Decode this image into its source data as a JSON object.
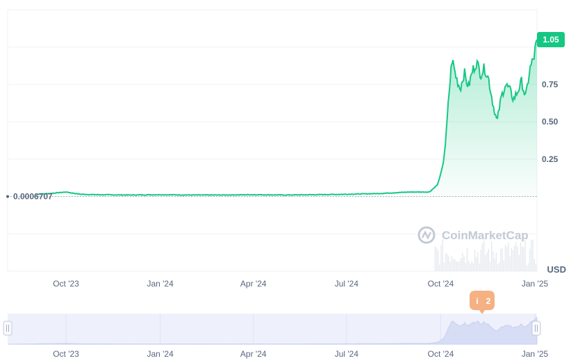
{
  "chart_data": {
    "type": "area",
    "title": "",
    "x": [
      "2023-09-01",
      "2023-09-15",
      "2023-10-01",
      "2023-10-15",
      "2023-11-01",
      "2023-12-01",
      "2024-01-01",
      "2024-02-01",
      "2024-03-01",
      "2024-04-01",
      "2024-05-01",
      "2024-06-01",
      "2024-07-01",
      "2024-08-01",
      "2024-09-01",
      "2024-09-20",
      "2024-09-28",
      "2024-10-03",
      "2024-10-06",
      "2024-10-09",
      "2024-10-12",
      "2024-10-16",
      "2024-10-20",
      "2024-10-24",
      "2024-10-28",
      "2024-11-01",
      "2024-11-05",
      "2024-11-09",
      "2024-11-13",
      "2024-11-17",
      "2024-11-21",
      "2024-11-25",
      "2024-11-29",
      "2024-12-03",
      "2024-12-07",
      "2024-12-11",
      "2024-12-15",
      "2024-12-19",
      "2024-12-23",
      "2024-12-27",
      "2024-12-31",
      "2025-01-03"
    ],
    "series": [
      {
        "values": [
          0.015,
          0.02,
          0.03,
          0.015,
          0.012,
          0.01,
          0.012,
          0.01,
          0.01,
          0.012,
          0.01,
          0.012,
          0.015,
          0.02,
          0.03,
          0.03,
          0.08,
          0.2,
          0.38,
          0.68,
          0.92,
          0.8,
          0.72,
          0.83,
          0.73,
          0.84,
          0.9,
          0.82,
          0.86,
          0.78,
          0.62,
          0.5,
          0.66,
          0.75,
          0.72,
          0.65,
          0.7,
          0.77,
          0.66,
          0.85,
          0.93,
          1.05
        ]
      }
    ],
    "x_ticks": [
      "Oct '23",
      "Jan '24",
      "Apr '24",
      "Jul '24",
      "Oct '24",
      "Jan '25"
    ],
    "y_ticks": [
      "0.25",
      "0.50",
      "0.75"
    ],
    "ylim": [
      -0.5,
      1.25
    ],
    "baseline_value": "0.0006707",
    "current_value": "1.05",
    "currency": "USD",
    "watermark": "CoinMarketCap",
    "event_badge": {
      "icon": "i",
      "count": "2"
    },
    "colors": {
      "line": "#16c784",
      "grid": "#eff2f5",
      "baseline": "#a6b0c3",
      "navigator_bg": "#eef1fc"
    },
    "grid": true
  }
}
